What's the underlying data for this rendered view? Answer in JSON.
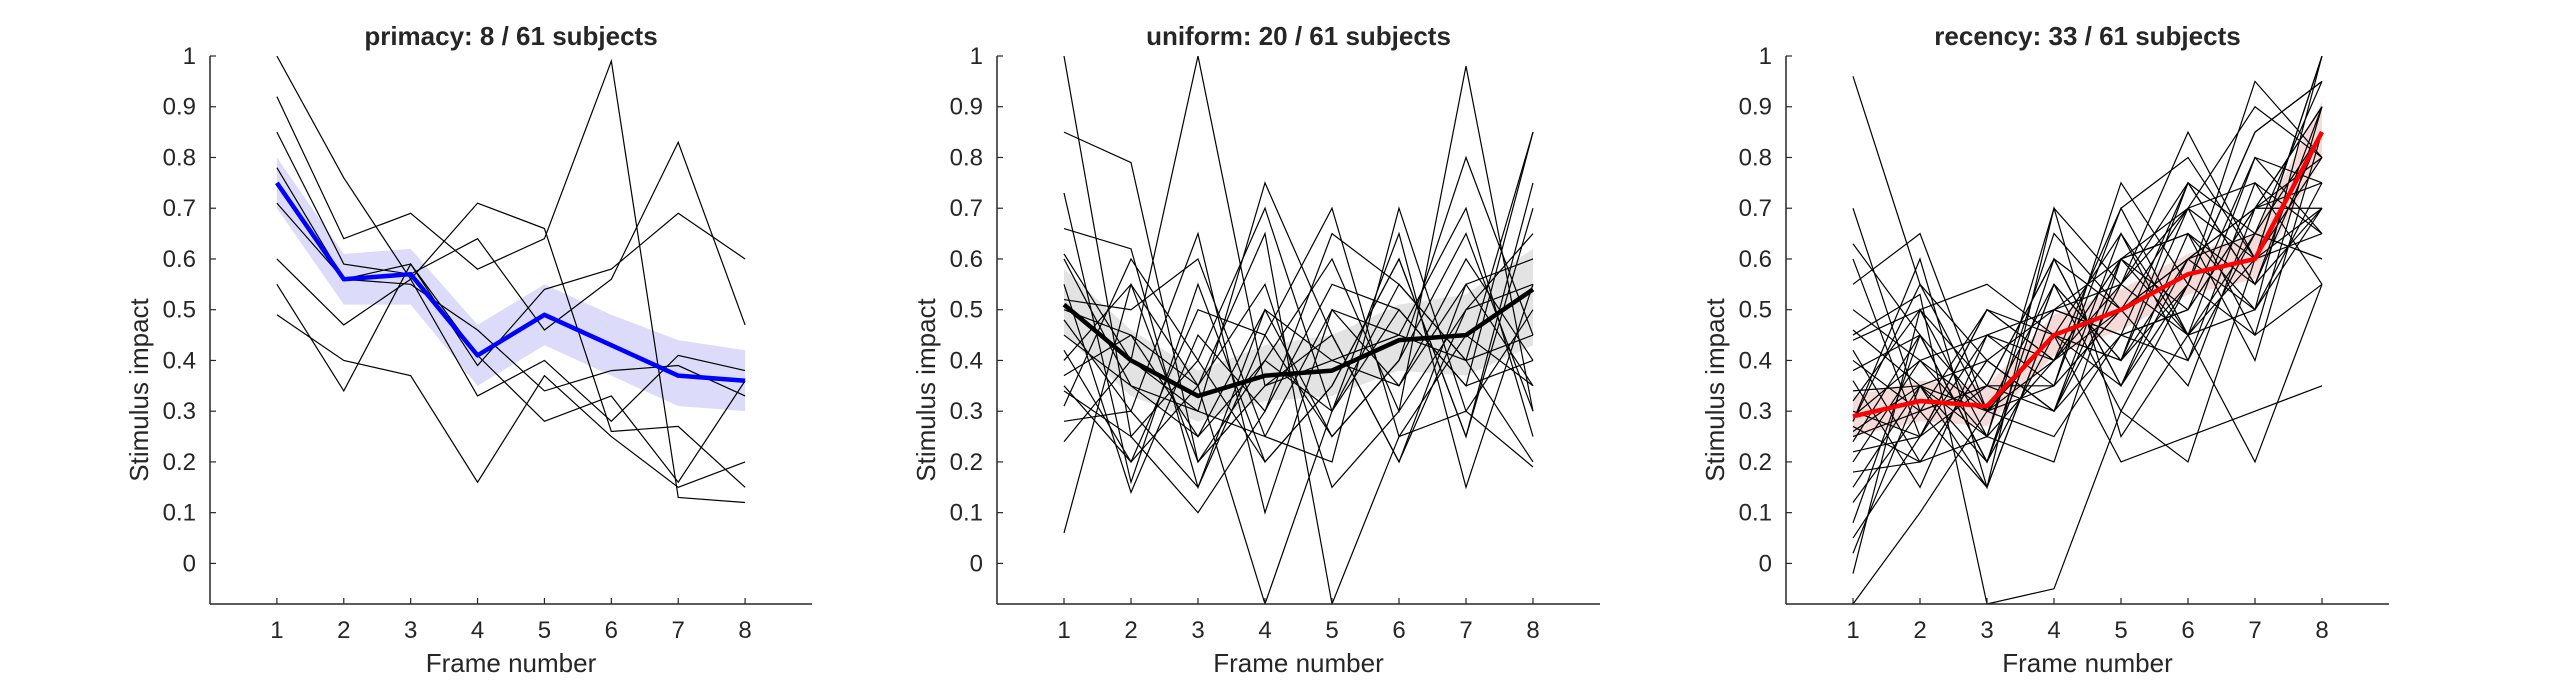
{
  "chart_data": [
    {
      "type": "line",
      "title": "primacy: 8 / 61 subjects",
      "xlabel": "Frame number",
      "ylabel": "Stimulus impact",
      "x": [
        1,
        2,
        3,
        4,
        5,
        6,
        7,
        8
      ],
      "xlim": [
        0,
        9
      ],
      "ylim": [
        -0.08,
        1
      ],
      "yticks": [
        0,
        0.1,
        0.2,
        0.3,
        0.4,
        0.5,
        0.6,
        0.7,
        0.8,
        0.9,
        1
      ],
      "grid": false,
      "mean_color": "#0000ff",
      "band_color": "#dcdcfa",
      "mean": [
        0.75,
        0.56,
        0.57,
        0.41,
        0.49,
        0.43,
        0.37,
        0.36
      ],
      "band_lower": [
        0.7,
        0.51,
        0.51,
        0.35,
        0.43,
        0.37,
        0.31,
        0.3
      ],
      "band_upper": [
        0.8,
        0.61,
        0.62,
        0.47,
        0.55,
        0.49,
        0.44,
        0.42
      ],
      "subjects": [
        [
          1.0,
          0.76,
          0.56,
          0.71,
          0.66,
          0.26,
          0.27,
          0.15
        ],
        [
          0.92,
          0.64,
          0.69,
          0.58,
          0.64,
          0.99,
          0.13,
          0.12
        ],
        [
          0.85,
          0.59,
          0.57,
          0.64,
          0.46,
          0.56,
          0.83,
          0.47
        ],
        [
          0.78,
          0.56,
          0.59,
          0.39,
          0.54,
          0.58,
          0.69,
          0.6
        ],
        [
          0.71,
          0.56,
          0.55,
          0.46,
          0.34,
          0.38,
          0.39,
          0.33
        ],
        [
          0.6,
          0.47,
          0.56,
          0.33,
          0.4,
          0.28,
          0.41,
          0.38
        ],
        [
          0.55,
          0.34,
          0.59,
          0.41,
          0.28,
          0.33,
          0.16,
          0.36
        ],
        [
          0.49,
          0.4,
          0.37,
          0.16,
          0.37,
          0.25,
          0.15,
          0.2
        ]
      ]
    },
    {
      "type": "line",
      "title": "uniform: 20 / 61 subjects",
      "xlabel": "Frame number",
      "ylabel": "Stimulus impact",
      "x": [
        1,
        2,
        3,
        4,
        5,
        6,
        7,
        8
      ],
      "xlim": [
        0,
        9
      ],
      "ylim": [
        -0.08,
        1
      ],
      "yticks": [
        0,
        0.1,
        0.2,
        0.3,
        0.4,
        0.5,
        0.6,
        0.7,
        0.8,
        0.9,
        1
      ],
      "grid": false,
      "mean_color": "#000000",
      "band_color": "#e3e3e3",
      "mean": [
        0.51,
        0.4,
        0.33,
        0.37,
        0.38,
        0.44,
        0.45,
        0.54
      ],
      "band_lower": [
        0.45,
        0.33,
        0.28,
        0.32,
        0.33,
        0.38,
        0.37,
        0.43
      ],
      "band_upper": [
        0.58,
        0.46,
        0.38,
        0.43,
        0.45,
        0.51,
        0.53,
        0.62
      ],
      "subjects": [
        [
          1.0,
          0.25,
          0.4,
          0.7,
          0.3,
          0.5,
          0.35,
          0.85
        ],
        [
          0.85,
          0.79,
          0.2,
          0.4,
          0.6,
          0.3,
          0.98,
          0.3
        ],
        [
          0.73,
          0.16,
          0.55,
          0.2,
          0.35,
          0.6,
          0.25,
          0.7
        ],
        [
          0.66,
          0.62,
          0.15,
          0.5,
          0.25,
          0.4,
          0.8,
          0.45
        ],
        [
          0.61,
          0.4,
          0.3,
          0.75,
          0.45,
          0.2,
          0.55,
          0.6
        ],
        [
          0.55,
          0.14,
          0.45,
          0.3,
          0.65,
          0.55,
          0.4,
          0.2
        ],
        [
          0.52,
          0.5,
          0.6,
          0.25,
          0.2,
          0.7,
          0.3,
          0.5
        ],
        [
          0.48,
          0.3,
          0.65,
          0.1,
          0.5,
          0.35,
          0.6,
          0.4
        ],
        [
          0.45,
          0.35,
          0.25,
          0.4,
          0.3,
          0.65,
          0.15,
          0.55
        ],
        [
          0.42,
          0.2,
          0.5,
          0.45,
          0.7,
          0.25,
          0.45,
          0.35
        ],
        [
          0.4,
          0.55,
          0.2,
          0.35,
          0.4,
          0.45,
          0.7,
          0.25
        ],
        [
          0.37,
          0.45,
          0.35,
          0.55,
          0.15,
          0.3,
          0.5,
          0.65
        ],
        [
          0.34,
          0.25,
          0.1,
          0.3,
          0.55,
          0.5,
          0.35,
          0.4
        ],
        [
          0.31,
          0.6,
          0.4,
          0.2,
          0.35,
          0.6,
          0.25,
          0.75
        ],
        [
          0.28,
          0.3,
          0.15,
          0.45,
          0.25,
          0.4,
          0.65,
          0.3
        ],
        [
          0.24,
          0.4,
          1.0,
          0.35,
          0.45,
          0.2,
          0.5,
          0.55
        ],
        [
          0.6,
          0.35,
          0.3,
          0.25,
          0.5,
          0.45,
          0.4,
          0.45
        ],
        [
          0.5,
          0.45,
          0.25,
          0.5,
          0.4,
          0.35,
          0.55,
          0.35
        ],
        [
          0.06,
          0.55,
          0.35,
          -0.08,
          0.3,
          0.55,
          0.4,
          0.85
        ],
        [
          0.35,
          0.2,
          0.35,
          0.65,
          -0.08,
          0.25,
          0.3,
          0.19
        ]
      ]
    },
    {
      "type": "line",
      "title": "recency: 33 / 61 subjects",
      "xlabel": "Frame number",
      "ylabel": "Stimulus impact",
      "x": [
        1,
        2,
        3,
        4,
        5,
        6,
        7,
        8
      ],
      "xlim": [
        0,
        9
      ],
      "ylim": [
        -0.08,
        1
      ],
      "yticks": [
        0,
        0.1,
        0.2,
        0.3,
        0.4,
        0.5,
        0.6,
        0.7,
        0.8,
        0.9,
        1
      ],
      "grid": false,
      "mean_color": "#ff0000",
      "band_color": "#f5dada",
      "mean": [
        0.29,
        0.32,
        0.31,
        0.45,
        0.5,
        0.57,
        0.6,
        0.85
      ],
      "band_lower": [
        0.25,
        0.28,
        0.27,
        0.41,
        0.46,
        0.53,
        0.56,
        0.8
      ],
      "band_upper": [
        0.33,
        0.36,
        0.35,
        0.49,
        0.54,
        0.61,
        0.65,
        0.91
      ],
      "subjects": [
        [
          0.96,
          0.55,
          0.4,
          0.3,
          0.6,
          0.5,
          0.7,
          0.9
        ],
        [
          0.7,
          0.3,
          0.5,
          0.4,
          0.7,
          0.8,
          0.6,
          1.0
        ],
        [
          0.63,
          0.45,
          0.2,
          0.55,
          0.4,
          0.7,
          0.9,
          0.8
        ],
        [
          0.6,
          0.25,
          0.35,
          0.6,
          0.5,
          0.6,
          0.5,
          0.7
        ],
        [
          0.55,
          0.65,
          0.3,
          0.35,
          0.75,
          0.55,
          0.85,
          0.95
        ],
        [
          0.5,
          0.4,
          0.45,
          0.5,
          0.45,
          0.75,
          0.65,
          0.6
        ],
        [
          0.46,
          0.35,
          0.25,
          0.7,
          0.55,
          0.45,
          0.8,
          0.75
        ],
        [
          0.44,
          0.5,
          0.55,
          0.45,
          0.35,
          0.65,
          0.55,
          0.85
        ],
        [
          0.42,
          0.2,
          0.4,
          0.3,
          0.65,
          0.4,
          0.75,
          0.65
        ],
        [
          0.4,
          0.3,
          0.15,
          0.5,
          0.6,
          0.7,
          0.45,
          0.55
        ],
        [
          0.38,
          0.45,
          0.3,
          0.25,
          0.45,
          0.5,
          0.7,
          0.9
        ],
        [
          0.36,
          0.15,
          0.45,
          0.4,
          0.55,
          0.85,
          0.6,
          0.7
        ],
        [
          0.34,
          0.35,
          0.2,
          0.55,
          0.3,
          0.55,
          0.95,
          0.8
        ],
        [
          0.32,
          0.5,
          0.35,
          0.35,
          0.7,
          0.45,
          0.5,
          1.0
        ],
        [
          0.3,
          0.25,
          0.5,
          0.45,
          0.4,
          0.6,
          0.65,
          0.6
        ],
        [
          0.29,
          0.4,
          0.25,
          0.65,
          0.5,
          0.35,
          0.7,
          0.75
        ],
        [
          0.28,
          0.55,
          0.3,
          0.4,
          0.6,
          0.65,
          0.4,
          0.85
        ],
        [
          0.27,
          0.2,
          0.4,
          0.3,
          0.45,
          0.5,
          0.8,
          0.65
        ],
        [
          0.26,
          0.35,
          0.15,
          0.5,
          0.55,
          0.75,
          0.55,
          0.9
        ],
        [
          0.25,
          0.3,
          0.35,
          0.6,
          0.35,
          0.6,
          0.7,
          0.7
        ],
        [
          0.24,
          0.45,
          0.2,
          0.45,
          0.65,
          0.45,
          0.6,
          0.8
        ],
        [
          0.22,
          0.25,
          0.45,
          0.35,
          0.5,
          0.7,
          0.75,
          0.55
        ],
        [
          0.2,
          0.4,
          0.3,
          0.55,
          0.4,
          0.55,
          0.85,
          0.95
        ],
        [
          0.18,
          0.2,
          0.25,
          0.4,
          0.6,
          0.65,
          0.5,
          0.75
        ],
        [
          0.15,
          0.35,
          0.4,
          0.5,
          0.45,
          0.4,
          0.65,
          0.85
        ],
        [
          0.12,
          0.3,
          0.35,
          0.3,
          0.55,
          0.7,
          0.6,
          0.65
        ],
        [
          0.08,
          0.45,
          0.2,
          0.6,
          0.35,
          0.55,
          0.45,
          0.9
        ],
        [
          0.05,
          0.25,
          0.5,
          0.4,
          0.5,
          0.6,
          0.7,
          0.8
        ],
        [
          0.02,
          0.35,
          0.3,
          0.45,
          0.4,
          0.75,
          0.55,
          0.7
        ],
        [
          -0.02,
          0.5,
          0.25,
          0.2,
          0.6,
          0.45,
          0.65,
          0.95
        ],
        [
          0.45,
          0.53,
          -0.08,
          -0.05,
          0.3,
          0.2,
          0.6,
          1.0
        ],
        [
          -0.08,
          0.1,
          0.3,
          0.45,
          0.2,
          0.25,
          0.3,
          0.35
        ],
        [
          0.28,
          0.6,
          0.15,
          0.7,
          0.25,
          0.45,
          0.2,
          0.55
        ]
      ]
    }
  ]
}
